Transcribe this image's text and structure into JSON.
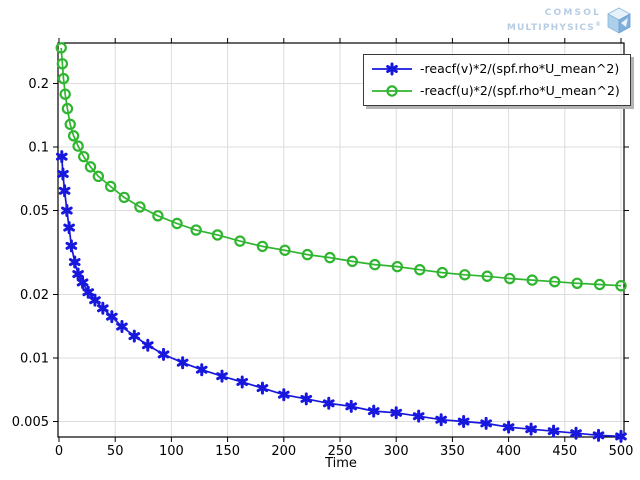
{
  "logo": {
    "line1": "COMSOL",
    "line2": "MULTIPHYSICS",
    "registered": "®",
    "color": "#b6cde3"
  },
  "chart_data": {
    "type": "line",
    "title": "",
    "xlabel": "Time",
    "ylabel": "",
    "x_axis": {
      "min": 0,
      "max": 503,
      "ticks": [
        0,
        50,
        100,
        150,
        200,
        250,
        300,
        350,
        400,
        450,
        500
      ]
    },
    "y_axis": {
      "scale": "log",
      "min": 0.0042,
      "max": 0.31,
      "ticks": [
        0.2,
        0.1,
        0.05,
        0.02,
        0.01,
        0.005
      ],
      "tick_labels": [
        "0.2",
        "0.1",
        "0.05",
        "0.02",
        "0.01",
        "0.005"
      ]
    },
    "grid": true,
    "legend_position": "top-right",
    "series": [
      {
        "name": "-reacf(v)*2/(spf.rho*U_mean^2)",
        "color": "#1717dd",
        "marker": "asterisk",
        "points": [
          [
            2.5,
            0.09
          ],
          [
            3.5,
            0.0745
          ],
          [
            5,
            0.062
          ],
          [
            7,
            0.05
          ],
          [
            9,
            0.0415
          ],
          [
            11,
            0.034
          ],
          [
            14,
            0.0285
          ],
          [
            17,
            0.025
          ],
          [
            21,
            0.0228
          ],
          [
            26,
            0.0205
          ],
          [
            32,
            0.0188
          ],
          [
            39,
            0.0172
          ],
          [
            47,
            0.0157
          ],
          [
            56,
            0.0141
          ],
          [
            67,
            0.0127
          ],
          [
            79,
            0.0115
          ],
          [
            93,
            0.0104
          ],
          [
            110,
            0.0095
          ],
          [
            127,
            0.0088
          ],
          [
            145,
            0.0082
          ],
          [
            163,
            0.0077
          ],
          [
            181,
            0.0072
          ],
          [
            200,
            0.0067
          ],
          [
            220,
            0.0064
          ],
          [
            240,
            0.0061
          ],
          [
            260,
            0.0059
          ],
          [
            280,
            0.0056
          ],
          [
            300,
            0.0055
          ],
          [
            320,
            0.0053
          ],
          [
            340,
            0.0051
          ],
          [
            360,
            0.005
          ],
          [
            380,
            0.0049
          ],
          [
            400,
            0.0047
          ],
          [
            420,
            0.0046
          ],
          [
            440,
            0.0045
          ],
          [
            460,
            0.0044
          ],
          [
            480,
            0.0043
          ],
          [
            500,
            0.00425
          ]
        ]
      },
      {
        "name": "-reacf(u)*2/(spf.rho*U_mean^2)",
        "color": "#2fb52f",
        "marker": "circle",
        "points": [
          [
            2,
            0.295
          ],
          [
            3,
            0.248
          ],
          [
            4,
            0.211
          ],
          [
            5.5,
            0.178
          ],
          [
            7.5,
            0.152
          ],
          [
            10,
            0.128
          ],
          [
            13,
            0.113
          ],
          [
            17,
            0.101
          ],
          [
            22,
            0.09
          ],
          [
            28,
            0.0805
          ],
          [
            35,
            0.0726
          ],
          [
            46,
            0.065
          ],
          [
            58,
            0.0577
          ],
          [
            72,
            0.052
          ],
          [
            88,
            0.0472
          ],
          [
            105,
            0.0434
          ],
          [
            122,
            0.0404
          ],
          [
            141,
            0.0383
          ],
          [
            161,
            0.0358
          ],
          [
            181,
            0.0338
          ],
          [
            201,
            0.0324
          ],
          [
            221,
            0.0309
          ],
          [
            241,
            0.0299
          ],
          [
            261,
            0.0287
          ],
          [
            281,
            0.0277
          ],
          [
            301,
            0.0271
          ],
          [
            321,
            0.0262
          ],
          [
            341,
            0.0254
          ],
          [
            361,
            0.0248
          ],
          [
            381,
            0.0244
          ],
          [
            401,
            0.0238
          ],
          [
            421,
            0.0234
          ],
          [
            441,
            0.023
          ],
          [
            461,
            0.0226
          ],
          [
            481,
            0.0223
          ],
          [
            500,
            0.022
          ]
        ]
      }
    ],
    "colors": {
      "gridline": "#dcdcdc",
      "axis": "#000000",
      "background": "#ffffff"
    }
  }
}
